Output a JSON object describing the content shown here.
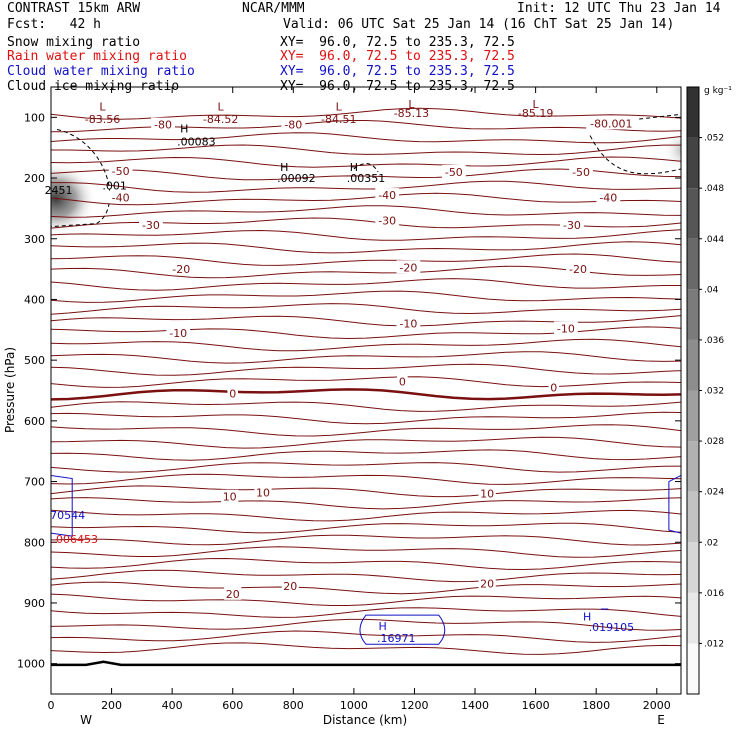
{
  "header": {
    "left1": "CONTRAST 15km ARW",
    "center1": "NCAR/MMM",
    "right1": "Init: 12 UTC Thu 23 Jan 14",
    "left2": "Fcst:   42 h",
    "right2": "Valid: 06 UTC Sat 25 Jan 14 (16 ChT Sat 25 Jan 14)",
    "fields": [
      {
        "name": "Snow mixing ratio",
        "xy": "XY=  96.0, 72.5 to 235.3, 72.5",
        "color": "#000000"
      },
      {
        "name": "Rain water mixing ratio",
        "xy": "XY=  96.0, 72.5 to 235.3, 72.5",
        "color": "#e01010"
      },
      {
        "name": "Cloud water mixing ratio",
        "xy": "XY=  96.0, 72.5 to 235.3, 72.5",
        "color": "#1010c8"
      },
      {
        "name": "Cloud ice mixing ratio",
        "xy": "XY=  96.0, 72.5 to 235.3, 72.5",
        "color": "#000000"
      }
    ]
  },
  "chart_data": {
    "type": "contour-cross-section",
    "xlabel": "Distance (km)",
    "ylabel": "Pressure (hPa)",
    "xlim": [
      0,
      2080
    ],
    "ylim": [
      1050,
      50
    ],
    "x_ticks": [
      0,
      200,
      400,
      600,
      800,
      1000,
      1200,
      1400,
      1600,
      1800,
      2000
    ],
    "y_ticks": [
      100,
      200,
      300,
      400,
      500,
      600,
      700,
      800,
      900,
      1000
    ],
    "x_end_labels": {
      "left": "W",
      "right": "E"
    },
    "colorbar": {
      "unit": "g kg⁻¹",
      "levels": [
        0.012,
        0.016,
        0.02,
        0.024,
        0.028,
        0.032,
        0.036,
        0.04,
        0.044,
        0.048,
        0.052
      ],
      "tick_labels": [
        ".012",
        ".016",
        ".02",
        ".024",
        ".028",
        ".032",
        ".036",
        ".04",
        ".044",
        ".048",
        ".052"
      ]
    },
    "temperature_contour_labels": [
      {
        "text": "-80",
        "x": 370,
        "p": 112
      },
      {
        "text": "-80",
        "x": 800,
        "p": 112
      },
      {
        "text": "-80.001",
        "x": 1850,
        "p": 110
      },
      {
        "text": "-50",
        "x": 230,
        "p": 188
      },
      {
        "text": "-50",
        "x": 1330,
        "p": 190
      },
      {
        "text": "-50",
        "x": 1750,
        "p": 190
      },
      {
        "text": "-40",
        "x": 230,
        "p": 232
      },
      {
        "text": "-40",
        "x": 1110,
        "p": 228
      },
      {
        "text": "-40",
        "x": 1840,
        "p": 232
      },
      {
        "text": "-30",
        "x": 330,
        "p": 277
      },
      {
        "text": "-30",
        "x": 1110,
        "p": 270
      },
      {
        "text": "-30",
        "x": 1720,
        "p": 277
      },
      {
        "text": "-20",
        "x": 430,
        "p": 350
      },
      {
        "text": "-20",
        "x": 1180,
        "p": 347
      },
      {
        "text": "-20",
        "x": 1740,
        "p": 350
      },
      {
        "text": "-10",
        "x": 420,
        "p": 455
      },
      {
        "text": "-10",
        "x": 1180,
        "p": 440
      },
      {
        "text": "-10",
        "x": 1700,
        "p": 448
      },
      {
        "text": "0",
        "x": 600,
        "p": 555
      },
      {
        "text": "0",
        "x": 1160,
        "p": 535
      },
      {
        "text": "0",
        "x": 1660,
        "p": 545
      },
      {
        "text": "10",
        "x": 590,
        "p": 725
      },
      {
        "text": "10",
        "x": 700,
        "p": 718
      },
      {
        "text": "10",
        "x": 1440,
        "p": 720
      },
      {
        "text": "20",
        "x": 600,
        "p": 885
      },
      {
        "text": "20",
        "x": 790,
        "p": 872
      },
      {
        "text": "20",
        "x": 1440,
        "p": 868
      }
    ],
    "extrema_labels": [
      {
        "text": "L",
        "x": 170,
        "p": 82
      },
      {
        "text": "-83.56",
        "x": 170,
        "p": 103
      },
      {
        "text": "L",
        "x": 560,
        "p": 82
      },
      {
        "text": "-84.52",
        "x": 560,
        "p": 103
      },
      {
        "text": "L",
        "x": 950,
        "p": 82
      },
      {
        "text": "-84.51",
        "x": 950,
        "p": 103
      },
      {
        "text": "L",
        "x": 1190,
        "p": 78
      },
      {
        "text": "-85.13",
        "x": 1190,
        "p": 93
      },
      {
        "text": "L",
        "x": 1600,
        "p": 78
      },
      {
        "text": "-85.19",
        "x": 1600,
        "p": 93
      },
      {
        "text": "H",
        "x": 440,
        "p": 118
      },
      {
        "text": ".00083",
        "x": 480,
        "p": 140
      },
      {
        "text": "H",
        "x": 770,
        "p": 182
      },
      {
        "text": ".00092",
        "x": 810,
        "p": 200
      },
      {
        "text": "H",
        "x": 1000,
        "p": 182
      },
      {
        "text": ".00351",
        "x": 1040,
        "p": 200
      },
      {
        "text": ".001",
        "x": 210,
        "p": 212
      },
      {
        "text": "2451",
        "x": 25,
        "p": 220
      },
      {
        "text": "70544",
        "x": 55,
        "p": 755
      },
      {
        "text": ".006453",
        "x": 80,
        "p": 795
      },
      {
        "text": "H",
        "x": 1095,
        "p": 938
      },
      {
        "text": ".16971",
        "x": 1140,
        "p": 958
      },
      {
        "text": "H",
        "x": 1770,
        "p": 922
      },
      {
        "text": ".019105",
        "x": 1850,
        "p": 940
      }
    ]
  }
}
